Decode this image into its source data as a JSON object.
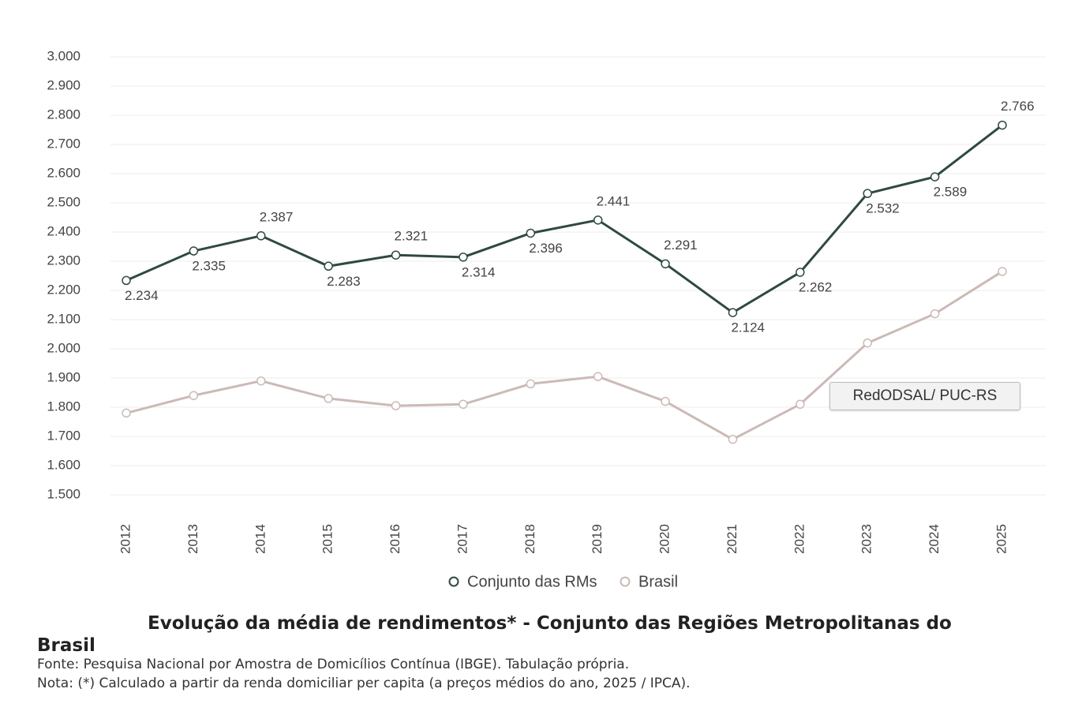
{
  "chart_data": {
    "type": "line",
    "title": "Evolução da média de rendimentos* - Conjunto das Regiões Metropolitanas do Brasil",
    "source": "Fonte: Pesquisa Nacional por Amostra de Domicílios Contínua (IBGE). Tabulação própria.",
    "note": "Nota: (*) Calculado a partir da renda domiciliar per capita (a preços médios do ano, 2025 / IPCA).",
    "annotation": "RedODSAL/ PUC-RS",
    "categories": [
      "2012",
      "2013",
      "2014",
      "2015",
      "2016",
      "2017",
      "2018",
      "2019",
      "2020",
      "2021",
      "2022",
      "2023",
      "2024",
      "2025"
    ],
    "series": [
      {
        "name": "Conjunto das RMs",
        "color": "#2f4a3e",
        "values": [
          2234,
          2335,
          2387,
          2283,
          2321,
          2314,
          2396,
          2441,
          2291,
          2124,
          2262,
          2532,
          2589,
          2766
        ],
        "value_labels": [
          "2.234",
          "2.335",
          "2.387",
          "2.283",
          "2.321",
          "2.314",
          "2.396",
          "2.441",
          "2.291",
          "2.124",
          "2.262",
          "2.532",
          "2.589",
          "2.766"
        ]
      },
      {
        "name": "Brasil",
        "color": "#cbbab6",
        "values": [
          1780,
          1840,
          1890,
          1830,
          1805,
          1810,
          1880,
          1905,
          1820,
          1690,
          1810,
          2020,
          2120,
          2265
        ]
      }
    ],
    "ylim": [
      1500,
      3000
    ],
    "yticks": [
      {
        "value": 1500,
        "label": "1.500"
      },
      {
        "value": 1600,
        "label": "1.600"
      },
      {
        "value": 1700,
        "label": "1.700"
      },
      {
        "value": 1800,
        "label": "1.800"
      },
      {
        "value": 1900,
        "label": "1.900"
      },
      {
        "value": 2000,
        "label": "2.000"
      },
      {
        "value": 2100,
        "label": "2.100"
      },
      {
        "value": 2200,
        "label": "2.200"
      },
      {
        "value": 2300,
        "label": "2.300"
      },
      {
        "value": 2400,
        "label": "2.400"
      },
      {
        "value": 2500,
        "label": "2.500"
      },
      {
        "value": 2600,
        "label": "2.600"
      },
      {
        "value": 2700,
        "label": "2.700"
      },
      {
        "value": 2800,
        "label": "2.800"
      },
      {
        "value": 2900,
        "label": "2.900"
      },
      {
        "value": 3000,
        "label": "3.000"
      }
    ],
    "grid": true,
    "legend": "bottom"
  }
}
